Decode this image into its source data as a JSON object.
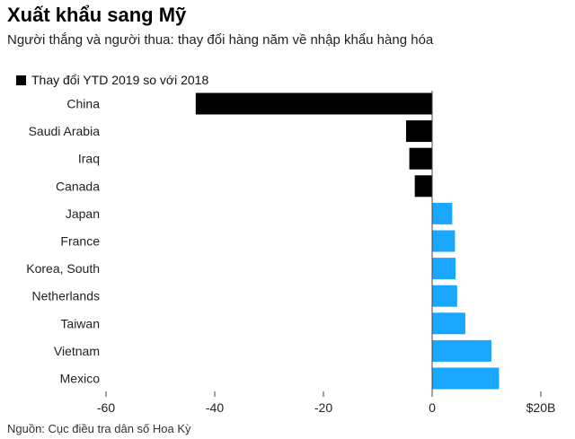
{
  "header": {
    "title": "Xuất khẩu sang Mỹ",
    "subtitle": "Người thắng và người thua: thay đổi hàng năm về nhập khẩu hàng hóa"
  },
  "footer": {
    "source": "Nguồn: Cục điều tra dân số Hoa Kỳ"
  },
  "colors": {
    "negative": "#000000",
    "positive": "#1aa7ff"
  },
  "chart_data": {
    "type": "bar",
    "orientation": "horizontal",
    "categories": [
      "China",
      "Saudi Arabia",
      "Iraq",
      "Canada",
      "Japan",
      "France",
      "Korea, South",
      "Netherlands",
      "Taiwan",
      "Vietnam",
      "Mexico"
    ],
    "series": [
      {
        "name": "Thay đổi YTD 2019 so với 2018",
        "values": [
          -43.5,
          -4.8,
          -4.2,
          -3.2,
          3.7,
          4.2,
          4.3,
          4.6,
          6.1,
          10.9,
          12.3
        ]
      }
    ],
    "xlim": [
      -60,
      20
    ],
    "xticks": [
      -60,
      -40,
      -20,
      0,
      20
    ],
    "xtick_labels": [
      "-60",
      "-40",
      "-20",
      "0",
      "$20B"
    ],
    "legend_position": "top-left",
    "grid": false
  }
}
